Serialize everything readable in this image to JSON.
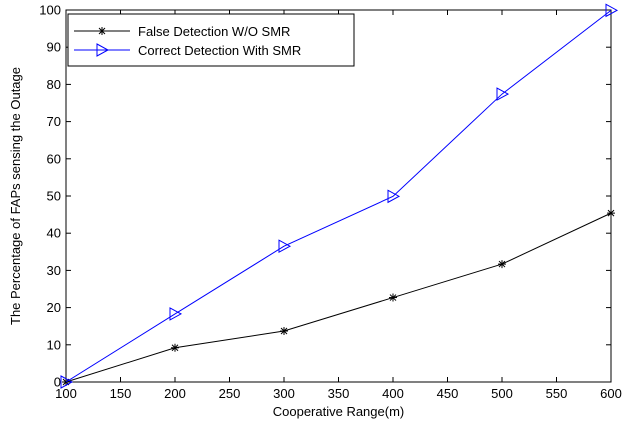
{
  "chart_data": {
    "type": "line",
    "title": "",
    "xlabel": "Cooperative Range(m)",
    "ylabel": "The Percentage of FAPs sensing the Outage",
    "xlim": [
      100,
      600
    ],
    "ylim": [
      0,
      100
    ],
    "xticks": [
      100,
      150,
      200,
      250,
      300,
      350,
      400,
      450,
      500,
      550,
      600
    ],
    "yticks": [
      0,
      10,
      20,
      30,
      40,
      50,
      60,
      70,
      80,
      90,
      100
    ],
    "grid": false,
    "legend_position": "top-left",
    "x": [
      100,
      200,
      300,
      400,
      500,
      600
    ],
    "series": [
      {
        "name": "False Detection W/O SMR",
        "values": [
          0,
          9.2,
          13.7,
          22.7,
          31.7,
          45.4
        ],
        "color": "#000000",
        "marker": "asterisk"
      },
      {
        "name": "Correct Detection With SMR",
        "values": [
          0,
          18.3,
          36.5,
          49.9,
          77.4,
          99.9
        ],
        "color": "#0000ff",
        "marker": "triangle-right"
      }
    ]
  }
}
